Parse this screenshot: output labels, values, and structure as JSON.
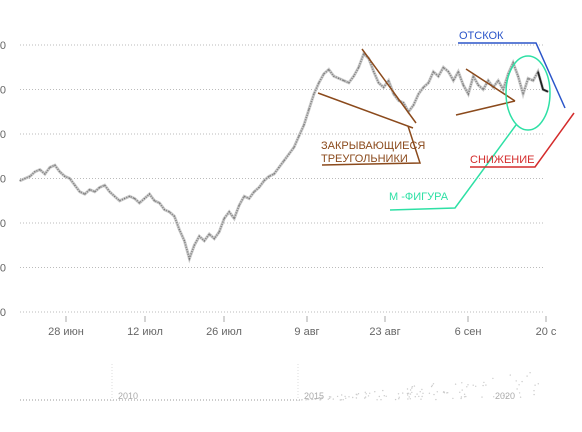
{
  "chart_data": {
    "type": "line",
    "title": "",
    "xlabel": "",
    "ylabel": "",
    "x_ticks": [
      "28 июн",
      "12 июл",
      "26 июл",
      "9 авг",
      "23 авг",
      "6 сен",
      "20 с"
    ],
    "y_ticks": [
      "0",
      "0",
      "0",
      "0",
      "0",
      "0",
      "0"
    ],
    "grid": true,
    "series": [
      {
        "values": [
          59.5,
          60.0,
          60.5,
          61.5,
          62.0,
          61.0,
          62.5,
          63.0,
          61.5,
          60.5,
          60.0,
          58.5,
          57.0,
          56.5,
          57.5,
          57.0,
          58.0,
          58.5,
          57.0,
          56.0,
          55.0,
          55.5,
          56.0,
          55.5,
          54.5,
          55.5,
          56.5,
          55.0,
          54.5,
          53.0,
          52.5,
          51.5,
          48.5,
          46.0,
          42.0,
          45.0,
          47.0,
          46.0,
          47.5,
          46.5,
          48.0,
          51.0,
          52.5,
          51.0,
          54.0,
          56.0,
          55.5,
          57.0,
          58.0,
          59.5,
          60.5,
          61.0,
          62.5,
          64.0,
          65.5,
          67.0,
          69.5,
          72.0,
          75.5,
          79.0,
          81.5,
          83.5,
          84.5,
          83.0,
          82.5,
          82.0,
          81.5,
          83.0,
          85.0,
          88.0,
          87.0,
          84.0,
          81.5,
          80.5,
          82.0,
          79.0,
          77.5,
          77.0,
          75.0,
          76.5,
          79.0,
          80.5,
          81.5,
          84.0,
          83.0,
          85.0,
          84.0,
          82.0,
          84.0,
          81.0,
          79.0,
          83.0,
          81.0,
          80.0,
          82.0,
          80.5,
          82.0,
          80.0,
          83.5,
          86.0,
          83.0,
          79.0,
          82.5,
          82.0,
          84.0,
          80.0,
          79.5
        ]
      }
    ],
    "annotations": {
      "triangles": "ЗАКРЫВАЮЩИЕСЯ\nТРЕУГОЛЬНИКИ",
      "m_figure": "М -ФИГУРА",
      "rebound": "ОТСКОК",
      "decline": "СНИЖЕНИЕ"
    },
    "navigator_ticks": [
      "2010",
      "2015",
      "2020"
    ]
  },
  "colors": {
    "price_line": "#888888",
    "triangles": "#8b4a1c",
    "m_figure": "#2ee0a5",
    "rebound": "#2b55c9",
    "decline": "#d42c2c",
    "grid": "#bbbbbb"
  }
}
